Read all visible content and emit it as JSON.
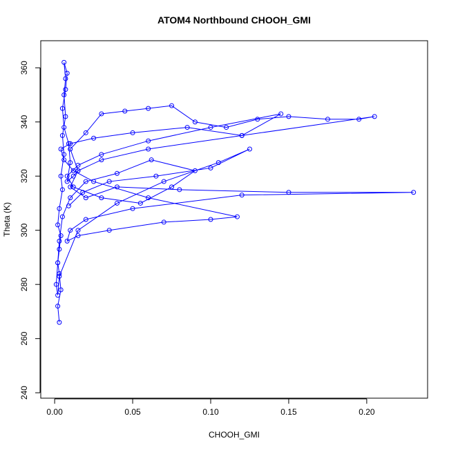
{
  "chart_data": {
    "type": "line",
    "title": "ATOM4 Northbound CHOOH_GMI",
    "x_label": "CHOOH_GMI",
    "y_label": "Theta (K)",
    "color": "#0000ff",
    "markers": true,
    "x": [
      0.003,
      0.002,
      0.004,
      0.003,
      0.002,
      0.003,
      0.004,
      0.002,
      0.003,
      0.005,
      0.004,
      0.006,
      0.005,
      0.007,
      0.006,
      0.007,
      0.006,
      0.008,
      0.007,
      0.005,
      0.006,
      0.009,
      0.01,
      0.008,
      0.012,
      0.015,
      0.01,
      0.02,
      0.03,
      0.045,
      0.06,
      0.075,
      0.09,
      0.11,
      0.13,
      0.15,
      0.175,
      0.195,
      0.205,
      0.12,
      0.06,
      0.03,
      0.015,
      0.01,
      0.02,
      0.04,
      0.08,
      0.15,
      0.23,
      0.12,
      0.05,
      0.02,
      0.01,
      0.008,
      0.015,
      0.035,
      0.07,
      0.1,
      0.117,
      0.06,
      0.025,
      0.012,
      0.006,
      0.004,
      0.01,
      0.025,
      0.05,
      0.085,
      0.12,
      0.145,
      0.1,
      0.06,
      0.03,
      0.015,
      0.008,
      0.012,
      0.03,
      0.055,
      0.075,
      0.09,
      0.062,
      0.04,
      0.02,
      0.01,
      0.005,
      0.003,
      0.002,
      0.001,
      0.002,
      0.003,
      0.015,
      0.04,
      0.07,
      0.105,
      0.125,
      0.1,
      0.065,
      0.035,
      0.018,
      0.009
    ],
    "values": [
      266,
      272,
      278,
      284,
      288,
      293,
      298,
      302,
      308,
      315,
      320,
      328,
      335,
      342,
      350,
      356,
      362,
      358,
      352,
      345,
      338,
      332,
      325,
      318,
      320,
      322,
      330,
      336,
      343,
      344,
      345,
      346,
      340,
      338,
      341,
      342,
      341,
      341,
      342,
      335,
      330,
      326,
      322,
      316,
      312,
      316,
      315,
      314,
      314,
      313,
      308,
      304,
      300,
      296,
      298,
      300,
      303,
      304,
      305,
      312,
      318,
      322,
      326,
      330,
      332,
      334,
      336,
      338,
      335,
      343,
      338,
      333,
      328,
      324,
      320,
      316,
      312,
      310,
      316,
      322,
      326,
      321,
      318,
      312,
      305,
      296,
      288,
      280,
      276,
      283,
      300,
      310,
      318,
      325,
      330,
      323,
      320,
      318,
      314,
      309
    ],
    "xlim": [
      -0.0089,
      0.239
    ],
    "ylim": [
      238,
      370
    ],
    "xticks": [
      {
        "value": 0,
        "label": "0.00"
      },
      0.05,
      {
        "value": 0.1,
        "label": "0.10"
      },
      0.15,
      {
        "value": 0.2,
        "label": "0.20"
      }
    ],
    "yticks": [
      240,
      260,
      280,
      300,
      320,
      340,
      360
    ]
  }
}
